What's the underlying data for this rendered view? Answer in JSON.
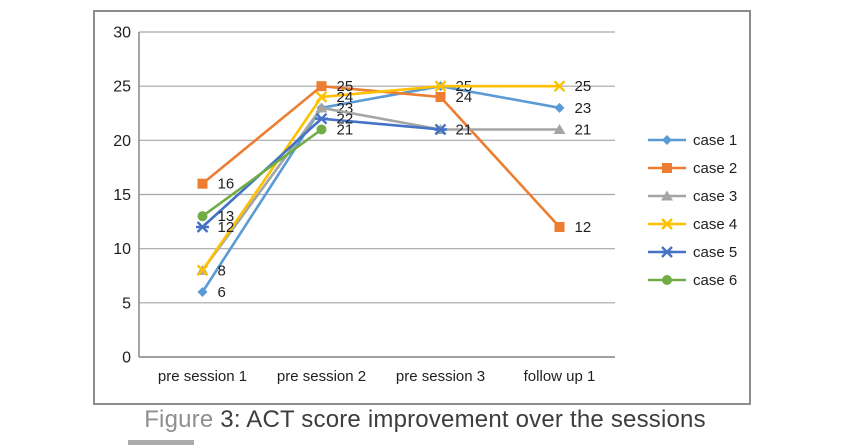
{
  "figure": {
    "caption_prefix": "Figure ",
    "caption_rest": "3: ACT score improvement over the sessions"
  },
  "chart_data": {
    "type": "line",
    "title": "",
    "xlabel": "",
    "ylabel": "",
    "categories": [
      "pre session 1",
      "pre session 2",
      "pre session 3",
      "follow up 1"
    ],
    "series": [
      {
        "name": "case 1",
        "marker": "diamond",
        "color": "#5B9BD5",
        "values": [
          6,
          23,
          25,
          23
        ]
      },
      {
        "name": "case 2",
        "marker": "square",
        "color": "#ED7D31",
        "values": [
          16,
          25,
          24,
          12
        ]
      },
      {
        "name": "case 3",
        "marker": "triangle",
        "color": "#A5A5A5",
        "values": [
          8,
          23,
          21,
          21
        ]
      },
      {
        "name": "case 4",
        "marker": "x",
        "color": "#FFC000",
        "values": [
          8,
          24,
          25,
          25
        ]
      },
      {
        "name": "case 5",
        "marker": "asterisk",
        "color": "#4472C4",
        "values": [
          12,
          22,
          21,
          null
        ]
      },
      {
        "name": "case 6",
        "marker": "circle",
        "color": "#70AD47",
        "values": [
          13,
          21,
          null,
          null
        ]
      }
    ],
    "ylim": [
      0,
      30
    ],
    "yticks": [
      0,
      5,
      10,
      15,
      20,
      25,
      30
    ],
    "grid": true,
    "legend_position": "right",
    "data_labels": true,
    "visible_point_labels": {
      "pre session 1": [
        16,
        13,
        12,
        8,
        6
      ],
      "pre session 2": [
        25,
        24,
        23,
        22,
        21
      ],
      "pre session 3": [
        25,
        24,
        21
      ],
      "follow up 1": [
        25,
        23,
        21,
        12
      ]
    }
  },
  "colors": {
    "gridline": "#A6A6A6",
    "axis": "#808080",
    "chart_border": "#8C8C8C",
    "text": "#1f1f1f",
    "caption_prefix": "#8F8F8F",
    "caption_rest": "#3D3D3D"
  }
}
